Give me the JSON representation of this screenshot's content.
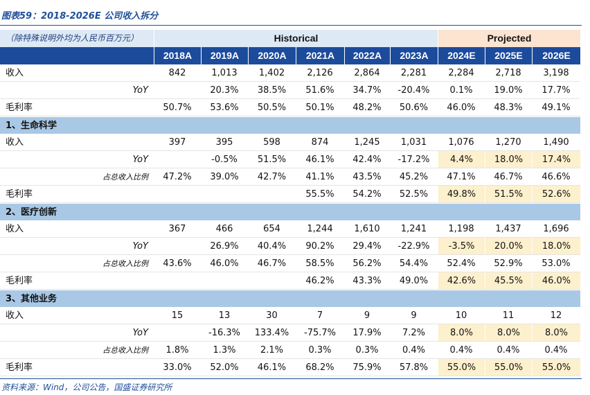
{
  "title": "图表59：2018-2026E 公司收入拆分",
  "source": "资料来源：Wind，公司公告，国盛证券研究所",
  "table": {
    "unit_note": "（除特殊说明外均为人民币百万元）",
    "groups": [
      {
        "label": "Historical",
        "span": 6
      },
      {
        "label": "Projected",
        "span": 3
      }
    ],
    "columns": [
      "2018A",
      "2019A",
      "2020A",
      "2021A",
      "2022A",
      "2023A",
      "2024E",
      "2025E",
      "2026E"
    ],
    "rows": [
      {
        "label": "收入",
        "cells": [
          "842",
          "1,013",
          "1,402",
          "2,126",
          "2,864",
          "2,281",
          "2,284",
          "2,718",
          "3,198"
        ]
      },
      {
        "label": "YoY",
        "indent": true,
        "cells": [
          null,
          "20.3%",
          "38.5%",
          "51.6%",
          "34.7%",
          "-20.4%",
          "0.1%",
          "19.0%",
          "17.7%"
        ]
      },
      {
        "label": "毛利率",
        "cells": [
          "50.7%",
          "53.6%",
          "50.5%",
          "50.1%",
          "48.2%",
          "50.6%",
          "46.0%",
          "48.3%",
          "49.1%"
        ]
      },
      {
        "section": "1、生命科学"
      },
      {
        "label": "收入",
        "cells": [
          "397",
          "395",
          "598",
          "874",
          "1,245",
          "1,031",
          "1,076",
          "1,270",
          "1,490"
        ]
      },
      {
        "label": "YoY",
        "indent": true,
        "highlight_projected": true,
        "cells": [
          null,
          "-0.5%",
          "51.5%",
          "46.1%",
          "42.4%",
          "-17.2%",
          "4.4%",
          "18.0%",
          "17.4%"
        ]
      },
      {
        "label": "占总收入比例",
        "indent": true,
        "cells": [
          "47.2%",
          "39.0%",
          "42.7%",
          "41.1%",
          "43.5%",
          "45.2%",
          "47.1%",
          "46.7%",
          "46.6%"
        ]
      },
      {
        "label": "毛利率",
        "highlight_projected": true,
        "cells": [
          null,
          null,
          null,
          "55.5%",
          "54.2%",
          "52.5%",
          "49.8%",
          "51.5%",
          "52.6%"
        ]
      },
      {
        "section": "2、医疗创新"
      },
      {
        "label": "收入",
        "cells": [
          "367",
          "466",
          "654",
          "1,244",
          "1,610",
          "1,241",
          "1,198",
          "1,437",
          "1,696"
        ]
      },
      {
        "label": "YoY",
        "indent": true,
        "highlight_projected": true,
        "cells": [
          null,
          "26.9%",
          "40.4%",
          "90.2%",
          "29.4%",
          "-22.9%",
          "-3.5%",
          "20.0%",
          "18.0%"
        ]
      },
      {
        "label": "占总收入比例",
        "indent": true,
        "cells": [
          "43.6%",
          "46.0%",
          "46.7%",
          "58.5%",
          "56.2%",
          "54.4%",
          "52.4%",
          "52.9%",
          "53.0%"
        ]
      },
      {
        "label": "毛利率",
        "highlight_projected": true,
        "cells": [
          null,
          null,
          null,
          "46.2%",
          "43.3%",
          "49.0%",
          "42.6%",
          "45.5%",
          "46.0%"
        ]
      },
      {
        "section": "3、其他业务"
      },
      {
        "label": "收入",
        "cells": [
          "15",
          "13",
          "30",
          "7",
          "9",
          "9",
          "10",
          "11",
          "12"
        ]
      },
      {
        "label": "YoY",
        "indent": true,
        "highlight_projected": true,
        "cells": [
          null,
          "-16.3%",
          "133.4%",
          "-75.7%",
          "17.9%",
          "7.2%",
          "8.0%",
          "8.0%",
          "8.0%"
        ]
      },
      {
        "label": "占总收入比例",
        "indent": true,
        "cells": [
          "1.8%",
          "1.3%",
          "2.1%",
          "0.3%",
          "0.3%",
          "0.4%",
          "0.4%",
          "0.4%",
          "0.4%"
        ]
      },
      {
        "label": "毛利率",
        "highlight_projected": true,
        "cells": [
          "33.0%",
          "52.0%",
          "46.1%",
          "68.2%",
          "75.9%",
          "57.8%",
          "55.0%",
          "55.0%",
          "55.0%"
        ]
      }
    ]
  }
}
